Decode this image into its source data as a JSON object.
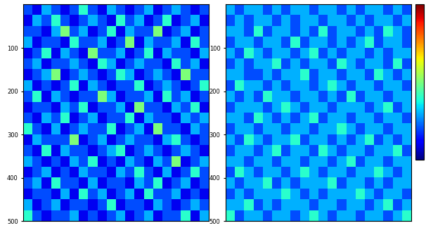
{
  "chart_data": [
    {
      "type": "heatmap",
      "xlim": [
        0,
        500
      ],
      "ylim": [
        500,
        0
      ],
      "yticks": [
        100,
        200,
        300,
        400,
        500
      ],
      "tick_labels": "y",
      "colorbar_range": [
        0,
        10
      ],
      "cells": [
        [
          2,
          1,
          3,
          2,
          1,
          2,
          4,
          2,
          1,
          3,
          2,
          1,
          2,
          3,
          1,
          2,
          3,
          2,
          1,
          2
        ],
        [
          1,
          3,
          2,
          4,
          2,
          1,
          2,
          3,
          2,
          1,
          4,
          2,
          3,
          1,
          2,
          4,
          1,
          2,
          3,
          1
        ],
        [
          2,
          2,
          1,
          3,
          5,
          2,
          3,
          1,
          2,
          4,
          1,
          3,
          2,
          2,
          5,
          1,
          2,
          3,
          1,
          2
        ],
        [
          3,
          1,
          2,
          2,
          1,
          4,
          2,
          2,
          3,
          1,
          2,
          5,
          1,
          3,
          2,
          2,
          3,
          1,
          4,
          2
        ],
        [
          1,
          2,
          4,
          1,
          3,
          2,
          1,
          5,
          2,
          2,
          3,
          1,
          2,
          4,
          1,
          3,
          2,
          2,
          1,
          3
        ],
        [
          2,
          3,
          1,
          2,
          2,
          3,
          2,
          1,
          4,
          3,
          1,
          2,
          3,
          2,
          2,
          1,
          4,
          2,
          3,
          1
        ],
        [
          1,
          2,
          3,
          5,
          1,
          2,
          3,
          2,
          1,
          2,
          4,
          3,
          1,
          2,
          3,
          2,
          1,
          5,
          2,
          2
        ],
        [
          3,
          1,
          2,
          1,
          2,
          4,
          1,
          3,
          2,
          1,
          2,
          2,
          4,
          1,
          2,
          3,
          2,
          1,
          2,
          4
        ],
        [
          2,
          4,
          1,
          3,
          2,
          1,
          2,
          2,
          5,
          3,
          1,
          2,
          2,
          3,
          1,
          4,
          2,
          3,
          1,
          2
        ],
        [
          1,
          2,
          2,
          1,
          3,
          2,
          4,
          1,
          2,
          2,
          3,
          1,
          5,
          2,
          2,
          1,
          3,
          2,
          4,
          1
        ],
        [
          2,
          1,
          3,
          2,
          4,
          1,
          2,
          3,
          1,
          2,
          2,
          4,
          1,
          3,
          2,
          2,
          1,
          3,
          2,
          3
        ],
        [
          4,
          2,
          1,
          3,
          1,
          2,
          3,
          2,
          2,
          4,
          1,
          2,
          3,
          1,
          5,
          2,
          2,
          1,
          3,
          2
        ],
        [
          1,
          3,
          2,
          2,
          2,
          5,
          1,
          2,
          3,
          1,
          2,
          3,
          2,
          2,
          1,
          3,
          4,
          2,
          1,
          2
        ],
        [
          2,
          1,
          4,
          1,
          3,
          2,
          2,
          1,
          2,
          3,
          4,
          1,
          2,
          3,
          2,
          1,
          2,
          3,
          2,
          1
        ],
        [
          3,
          2,
          1,
          2,
          1,
          3,
          2,
          4,
          1,
          2,
          1,
          3,
          2,
          1,
          3,
          2,
          5,
          1,
          2,
          3
        ],
        [
          1,
          2,
          3,
          1,
          2,
          1,
          3,
          2,
          2,
          1,
          3,
          2,
          4,
          2,
          1,
          3,
          1,
          2,
          4,
          2
        ],
        [
          2,
          3,
          1,
          4,
          2,
          2,
          1,
          3,
          1,
          2,
          2,
          1,
          3,
          2,
          4,
          1,
          2,
          3,
          1,
          2
        ],
        [
          1,
          2,
          2,
          1,
          3,
          1,
          4,
          2,
          3,
          1,
          2,
          3,
          1,
          4,
          2,
          2,
          3,
          1,
          2,
          1
        ],
        [
          3,
          1,
          2,
          3,
          1,
          2,
          2,
          1,
          2,
          4,
          1,
          2,
          2,
          1,
          3,
          2,
          1,
          2,
          3,
          2
        ],
        [
          4,
          2,
          1,
          2,
          2,
          3,
          1,
          2,
          1,
          2,
          3,
          1,
          2,
          3,
          1,
          2,
          2,
          4,
          1,
          3
        ]
      ]
    },
    {
      "type": "heatmap",
      "xlim": [
        0,
        500
      ],
      "ylim": [
        500,
        0
      ],
      "yticks": [
        100,
        200,
        300,
        400,
        500
      ],
      "tick_labels": "y",
      "colorbar_range": [
        0,
        10
      ],
      "cells": [
        [
          3,
          2,
          3,
          3,
          2,
          3,
          2,
          3,
          3,
          2,
          3,
          3,
          2,
          3,
          2,
          3,
          3,
          2,
          3,
          2
        ],
        [
          2,
          3,
          2,
          3,
          3,
          2,
          3,
          2,
          3,
          3,
          2,
          3,
          3,
          2,
          3,
          2,
          3,
          3,
          2,
          3
        ],
        [
          3,
          3,
          2,
          4,
          2,
          3,
          3,
          2,
          3,
          2,
          4,
          2,
          3,
          3,
          2,
          3,
          2,
          4,
          3,
          2
        ],
        [
          2,
          3,
          3,
          2,
          3,
          3,
          2,
          4,
          2,
          3,
          3,
          2,
          3,
          2,
          3,
          4,
          2,
          3,
          3,
          2
        ],
        [
          3,
          2,
          4,
          3,
          2,
          3,
          3,
          2,
          3,
          4,
          2,
          3,
          2,
          3,
          3,
          2,
          3,
          2,
          3,
          3
        ],
        [
          2,
          3,
          2,
          3,
          3,
          4,
          2,
          3,
          2,
          3,
          3,
          2,
          4,
          3,
          2,
          3,
          3,
          2,
          4,
          2
        ],
        [
          3,
          3,
          2,
          2,
          3,
          2,
          3,
          3,
          4,
          2,
          3,
          3,
          2,
          3,
          3,
          2,
          4,
          3,
          2,
          3
        ],
        [
          2,
          4,
          3,
          3,
          2,
          3,
          2,
          3,
          3,
          2,
          3,
          4,
          3,
          2,
          3,
          3,
          2,
          3,
          3,
          2
        ],
        [
          3,
          2,
          3,
          2,
          4,
          3,
          3,
          2,
          3,
          3,
          2,
          3,
          2,
          4,
          2,
          3,
          3,
          2,
          3,
          3
        ],
        [
          2,
          3,
          3,
          3,
          2,
          3,
          4,
          3,
          2,
          3,
          3,
          2,
          3,
          3,
          3,
          2,
          3,
          4,
          2,
          3
        ],
        [
          3,
          3,
          2,
          4,
          3,
          2,
          3,
          2,
          3,
          4,
          2,
          3,
          3,
          2,
          3,
          3,
          2,
          3,
          3,
          2
        ],
        [
          2,
          3,
          3,
          2,
          3,
          3,
          2,
          3,
          3,
          2,
          3,
          3,
          4,
          3,
          2,
          3,
          3,
          2,
          3,
          3
        ],
        [
          3,
          2,
          4,
          3,
          2,
          3,
          3,
          4,
          2,
          3,
          3,
          2,
          3,
          2,
          3,
          4,
          2,
          3,
          2,
          3
        ],
        [
          2,
          3,
          3,
          2,
          3,
          4,
          2,
          3,
          3,
          2,
          4,
          3,
          2,
          3,
          3,
          2,
          3,
          3,
          4,
          2
        ],
        [
          3,
          3,
          2,
          3,
          3,
          2,
          3,
          3,
          2,
          3,
          3,
          2,
          3,
          4,
          2,
          3,
          3,
          2,
          3,
          3
        ],
        [
          2,
          4,
          3,
          2,
          3,
          3,
          2,
          3,
          4,
          3,
          2,
          3,
          3,
          2,
          3,
          3,
          4,
          3,
          2,
          3
        ],
        [
          3,
          2,
          3,
          3,
          4,
          2,
          3,
          2,
          3,
          3,
          3,
          4,
          2,
          3,
          3,
          2,
          3,
          2,
          3,
          3
        ],
        [
          2,
          3,
          2,
          3,
          3,
          3,
          4,
          3,
          2,
          3,
          2,
          3,
          3,
          3,
          4,
          3,
          2,
          3,
          3,
          2
        ],
        [
          3,
          3,
          4,
          2,
          3,
          2,
          3,
          3,
          3,
          2,
          3,
          3,
          2,
          3,
          3,
          2,
          3,
          4,
          2,
          3
        ],
        [
          4,
          2,
          3,
          3,
          2,
          3,
          3,
          2,
          3,
          4,
          3,
          2,
          3,
          3,
          2,
          3,
          3,
          2,
          3,
          4
        ]
      ]
    }
  ]
}
